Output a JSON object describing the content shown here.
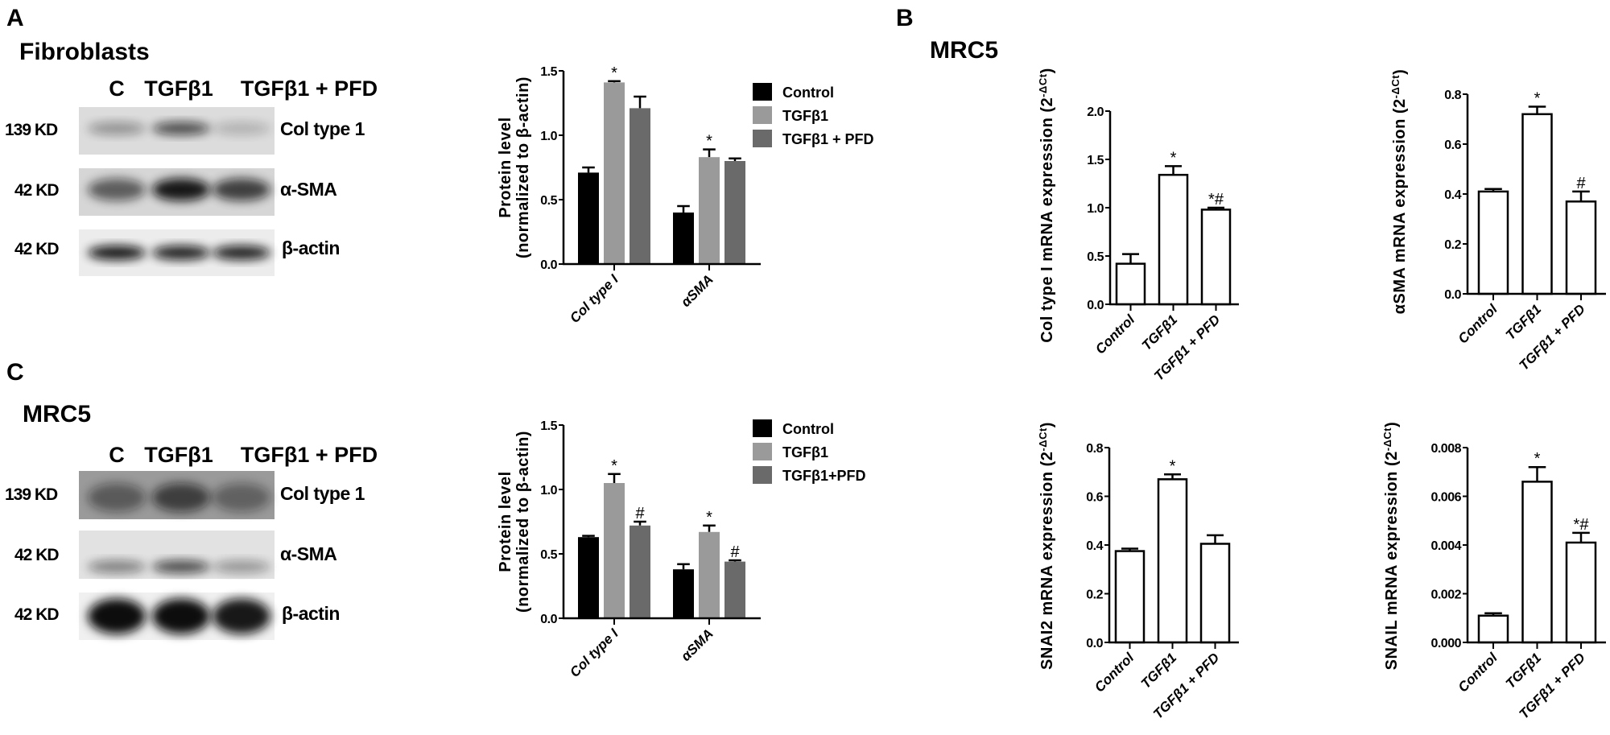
{
  "panels": {
    "a": "A",
    "b": "B",
    "c": "C"
  },
  "fibroblast_blot": {
    "title": "Fibroblasts",
    "lanes": [
      "C",
      "TGFβ1",
      "TGFβ1 + PFD"
    ],
    "rows": [
      {
        "kd": "139 KD",
        "protein": "Col type 1"
      },
      {
        "kd": "42 KD",
        "protein": "α-SMA"
      },
      {
        "kd": "42 KD",
        "protein": "β-actin"
      }
    ]
  },
  "mrc5_blot": {
    "title": "MRC5",
    "lanes": [
      "C",
      "TGFβ1",
      "TGFβ1 + PFD"
    ],
    "rows": [
      {
        "kd": "139 KD",
        "protein": "Col type 1"
      },
      {
        "kd": "42 KD",
        "protein": "α-SMA"
      },
      {
        "kd": "42 KD",
        "protein": "β-actin"
      }
    ]
  },
  "mrc5_pcr_title": "MRC5",
  "colors": {
    "control": "#000000",
    "tgfb1": "#9a9a9a",
    "tgfb1_pfd": "#6a6a6a",
    "pcr_bar": "#ffffff"
  },
  "chart_data": [
    {
      "id": "fibroblast-protein",
      "type": "bar",
      "categories": [
        "Col type I",
        "αSMA"
      ],
      "ylabel": [
        "Protein level",
        "(normalized to β-actin)"
      ],
      "ylim": [
        0,
        1.5
      ],
      "yticks": [
        "0.0",
        "0.5",
        "1.0",
        "1.5"
      ],
      "legend": "right",
      "series": [
        {
          "name": "Control",
          "color": "#000000",
          "values": [
            0.71,
            0.4
          ],
          "errors": [
            0.04,
            0.05
          ],
          "annotations": [
            "",
            ""
          ]
        },
        {
          "name": "TGFβ1",
          "color": "#9a9a9a",
          "values": [
            1.41,
            0.83
          ],
          "errors": [
            0.01,
            0.06
          ],
          "annotations": [
            "*",
            "*"
          ]
        },
        {
          "name": "TGFβ1 + PFD",
          "color": "#6a6a6a",
          "values": [
            1.21,
            0.8
          ],
          "errors": [
            0.09,
            0.02
          ],
          "annotations": [
            "",
            ""
          ]
        }
      ]
    },
    {
      "id": "mrc5-protein",
      "type": "bar",
      "categories": [
        "Col type I",
        "αSMA"
      ],
      "ylabel": [
        "Protein level",
        "(normalized to β-actin)"
      ],
      "ylim": [
        0,
        1.5
      ],
      "yticks": [
        "0.0",
        "0.5",
        "1.0",
        "1.5"
      ],
      "legend": "right",
      "series": [
        {
          "name": "Control",
          "color": "#000000",
          "values": [
            0.63,
            0.38
          ],
          "errors": [
            0.01,
            0.04
          ],
          "annotations": [
            "",
            ""
          ]
        },
        {
          "name": "TGFβ1",
          "color": "#9a9a9a",
          "values": [
            1.05,
            0.67
          ],
          "errors": [
            0.07,
            0.05
          ],
          "annotations": [
            "*",
            "*"
          ]
        },
        {
          "name": "TGFβ1+PFD",
          "color": "#6a6a6a",
          "values": [
            0.72,
            0.44
          ],
          "errors": [
            0.03,
            0.01
          ],
          "annotations": [
            "#",
            "#"
          ]
        }
      ]
    },
    {
      "id": "col1-mrna",
      "type": "bar",
      "categories": [
        "Control",
        "TGFβ1",
        "TGFβ1 + PFD"
      ],
      "ylabel": [
        "Col type I mRNA expression (2",
        "-ΔCt",
        ")"
      ],
      "ylim": [
        0,
        2.0
      ],
      "yticks": [
        "0.0",
        "0.5",
        "1.0",
        "1.5",
        "2.0"
      ],
      "values": [
        0.42,
        1.34,
        0.98
      ],
      "errors": [
        0.1,
        0.09,
        0.02
      ],
      "annotations": [
        "",
        "*",
        "*#"
      ]
    },
    {
      "id": "asma-mrna",
      "type": "bar",
      "categories": [
        "Control",
        "TGFβ1",
        "TGFβ1 + PFD"
      ],
      "ylabel": [
        "αSMA  mRNA expression (2",
        "-ΔCt",
        ")"
      ],
      "ylim": [
        0,
        0.8
      ],
      "yticks": [
        "0.0",
        "0.2",
        "0.4",
        "0.6",
        "0.8"
      ],
      "values": [
        0.41,
        0.72,
        0.37
      ],
      "errors": [
        0.01,
        0.03,
        0.04
      ],
      "annotations": [
        "",
        "*",
        "#"
      ]
    },
    {
      "id": "snai2-mrna",
      "type": "bar",
      "categories": [
        "Control",
        "TGFβ1",
        "TGFβ1 + PFD"
      ],
      "ylabel": [
        "SNAI2 mRNA expression (2",
        "-ΔCt",
        ")"
      ],
      "ylim": [
        0,
        0.8
      ],
      "yticks": [
        "0.0",
        "0.2",
        "0.4",
        "0.6",
        "0.8"
      ],
      "values": [
        0.375,
        0.67,
        0.405
      ],
      "errors": [
        0.01,
        0.02,
        0.035
      ],
      "annotations": [
        "",
        "*",
        ""
      ]
    },
    {
      "id": "snail-mrna",
      "type": "bar",
      "categories": [
        "Control",
        "TGFβ1",
        "TGFβ1 + PFD"
      ],
      "ylabel": [
        "SNAIL mRNA expression (2",
        "-ΔCt",
        ")"
      ],
      "ylim": [
        0,
        0.008
      ],
      "yticks": [
        "0.000",
        "0.002",
        "0.004",
        "0.006",
        "0.008"
      ],
      "values": [
        0.0011,
        0.0066,
        0.0041
      ],
      "errors": [
        0.0001,
        0.0006,
        0.0004
      ],
      "annotations": [
        "",
        "*",
        "*#"
      ]
    }
  ]
}
